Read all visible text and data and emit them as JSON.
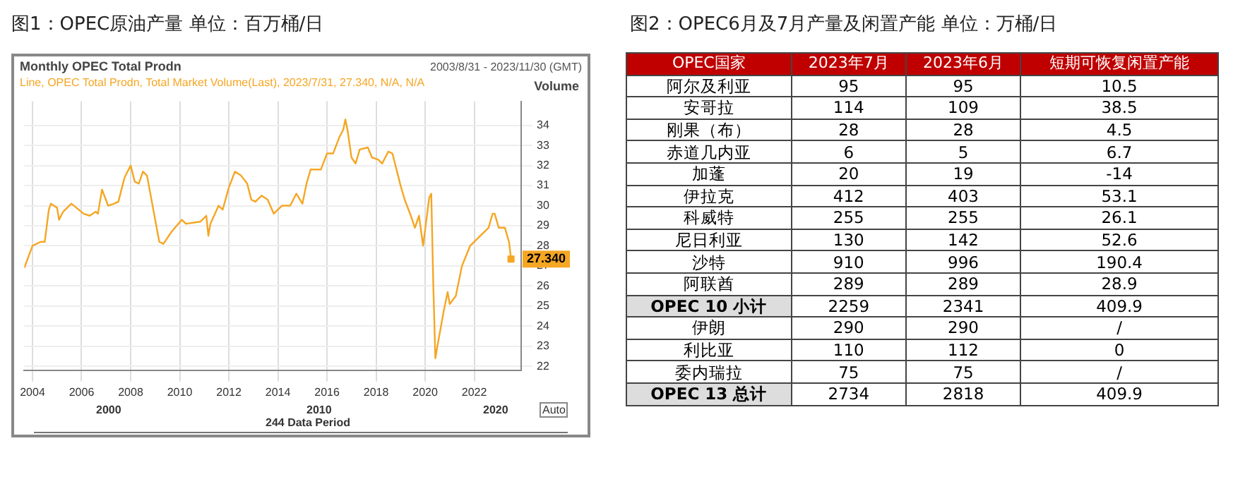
{
  "chart_data": [
    {
      "type": "line",
      "title": "图1：OPEC原油产量 单位：百万桶/日",
      "subtitle": "Monthly OPEC Total Prodn",
      "ylabel": "Volume",
      "annotations": [
        "2003/8/31 - 2023/11/30 (GMT)",
        "Line, OPEC Total Prodn, Total Market Volume(Last), 2023/7/31, 27.340, N/A, N/A",
        "2000",
        "2010",
        "2020",
        "244 Data Period",
        "Auto"
      ],
      "x": [
        "2003-09",
        "2004-01",
        "2004-05",
        "2004-07",
        "2004-09",
        "2004-10",
        "2005-01",
        "2005-02",
        "2005-04",
        "2005-08",
        "2006-02",
        "2006-05",
        "2006-08",
        "2006-09",
        "2006-11",
        "2007-02",
        "2007-05",
        "2007-07",
        "2007-10",
        "2008-01",
        "2008-03",
        "2008-05",
        "2008-07",
        "2008-09",
        "2008-11",
        "2009-03",
        "2009-05",
        "2009-09",
        "2010-02",
        "2010-04",
        "2010-11",
        "2011-02",
        "2011-03",
        "2011-04",
        "2011-08",
        "2011-10",
        "2012-01",
        "2012-04",
        "2012-07",
        "2012-10",
        "2012-12",
        "2013-02",
        "2013-05",
        "2013-08",
        "2013-11",
        "2014-01",
        "2014-03",
        "2014-07",
        "2014-10",
        "2015-01",
        "2015-03",
        "2015-05",
        "2015-10",
        "2016-01",
        "2016-04",
        "2016-07",
        "2016-09",
        "2016-10",
        "2016-11",
        "2017-01",
        "2017-03",
        "2017-05",
        "2017-09",
        "2017-11",
        "2018-02",
        "2018-04",
        "2018-07",
        "2018-09",
        "2019-01",
        "2019-03",
        "2019-06",
        "2019-08",
        "2019-10",
        "2019-12",
        "2020-03",
        "2020-04",
        "2020-05",
        "2020-06",
        "2020-07",
        "2020-10",
        "2020-12",
        "2021-01",
        "2021-04",
        "2021-07",
        "2021-11",
        "2022-04",
        "2022-08",
        "2022-10",
        "2022-11",
        "2023-01",
        "2023-04",
        "2023-06",
        "2023-07"
      ],
      "series": [
        {
          "color": "#f5a623",
          "values": [
            26.9,
            28.0,
            28.2,
            28.2,
            29.8,
            30.1,
            29.9,
            29.3,
            29.7,
            30.1,
            29.6,
            29.5,
            29.7,
            29.6,
            30.8,
            30.0,
            30.1,
            30.2,
            31.4,
            32.0,
            31.2,
            31.1,
            31.7,
            31.5,
            30.4,
            28.2,
            28.1,
            28.7,
            29.3,
            29.1,
            29.2,
            29.5,
            28.5,
            29.1,
            30.0,
            29.8,
            30.9,
            31.7,
            31.5,
            31.1,
            30.3,
            30.2,
            30.5,
            30.3,
            29.6,
            29.8,
            30.0,
            30.0,
            30.6,
            30.1,
            31.1,
            31.8,
            31.8,
            32.6,
            32.6,
            33.4,
            33.8,
            34.3,
            33.8,
            32.4,
            32.1,
            32.8,
            32.9,
            32.4,
            32.3,
            32.1,
            32.7,
            32.6,
            31.0,
            30.3,
            29.5,
            28.9,
            29.5,
            28.0,
            30.4,
            30.6,
            26.0,
            22.4,
            23.0,
            24.7,
            25.7,
            25.1,
            25.5,
            27.0,
            28.0,
            28.5,
            28.9,
            29.6,
            29.6,
            28.9,
            28.9,
            28.2,
            27.34
          ],
          "value_labels": [
            null,
            null,
            null,
            null,
            null,
            null,
            null,
            null,
            null,
            null,
            null,
            null,
            null,
            null,
            null,
            null,
            null,
            null,
            null,
            null,
            null,
            null,
            null,
            null,
            null,
            null,
            null,
            null,
            null,
            null,
            null,
            null,
            null,
            null,
            null,
            null,
            null,
            null,
            null,
            null,
            null,
            null,
            null,
            null,
            null,
            null,
            null,
            null,
            null,
            null,
            null,
            null,
            null,
            null,
            null,
            null,
            null,
            null,
            null,
            null,
            null,
            null,
            null,
            null,
            null,
            null,
            null,
            null,
            null,
            null,
            null,
            null,
            null,
            null,
            null,
            null,
            null,
            null,
            null,
            null,
            null,
            null,
            null,
            null,
            null,
            null,
            null,
            null,
            null,
            null,
            null,
            null,
            "27.340"
          ]
        }
      ],
      "xlim": [
        "2003-08-31",
        "2023-11-30"
      ],
      "xticks": [
        "2004",
        "2006",
        "2008",
        "2010",
        "2012",
        "2014",
        "2016",
        "2018",
        "2020",
        "2022"
      ],
      "ylim": [
        21.8,
        35.2
      ],
      "yticks": [
        22,
        23,
        24,
        25,
        26,
        27,
        28,
        29,
        30,
        31,
        32,
        33,
        34
      ],
      "grid": true,
      "legend": false
    },
    {
      "type": "heatmap",
      "title": "图2：OPEC6月及7月产量及闲置产能 单位：万桶/日",
      "ylabel": "OPEC国家",
      "categories": [
        "2023年7月",
        "2023年6月",
        "短期可恢复闲置产能"
      ],
      "y_categories": [
        "阿尔及利亚",
        "安哥拉",
        "刚果（布）",
        "赤道几内亚",
        "加蓬",
        "伊拉克",
        "科威特",
        "尼日利亚",
        "沙特",
        "阿联酋",
        "OPEC 10 小计",
        "伊朗",
        "利比亚",
        "委内瑞拉",
        "OPEC 13 总计"
      ],
      "cells": [
        [
          95,
          95,
          10.5
        ],
        [
          114,
          109,
          38.5
        ],
        [
          28,
          28,
          4.5
        ],
        [
          6,
          5,
          6.7
        ],
        [
          20,
          19,
          -14
        ],
        [
          412,
          403,
          53.1
        ],
        [
          255,
          255,
          26.1
        ],
        [
          130,
          142,
          52.6
        ],
        [
          910,
          996,
          190.4
        ],
        [
          289,
          289,
          28.9
        ],
        [
          2259,
          2341,
          409.9
        ],
        [
          290,
          290,
          null
        ],
        [
          110,
          112,
          0
        ],
        [
          75,
          75,
          null
        ],
        [
          2734,
          2818,
          409.9
        ]
      ],
      "cell_labels": [
        [
          "95",
          "95",
          "10.5"
        ],
        [
          "114",
          "109",
          "38.5"
        ],
        [
          "28",
          "28",
          "4.5"
        ],
        [
          "6",
          "5",
          "6.7"
        ],
        [
          "20",
          "19",
          "-14"
        ],
        [
          "412",
          "403",
          "53.1"
        ],
        [
          "255",
          "255",
          "26.1"
        ],
        [
          "130",
          "142",
          "52.6"
        ],
        [
          "910",
          "996",
          "190.4"
        ],
        [
          "289",
          "289",
          "28.9"
        ],
        [
          "2259",
          "2341",
          "409.9"
        ],
        [
          "290",
          "290",
          "/"
        ],
        [
          "110",
          "112",
          "0"
        ],
        [
          "75",
          "75",
          "/"
        ],
        [
          "2734",
          "2818",
          "409.9"
        ]
      ]
    }
  ]
}
